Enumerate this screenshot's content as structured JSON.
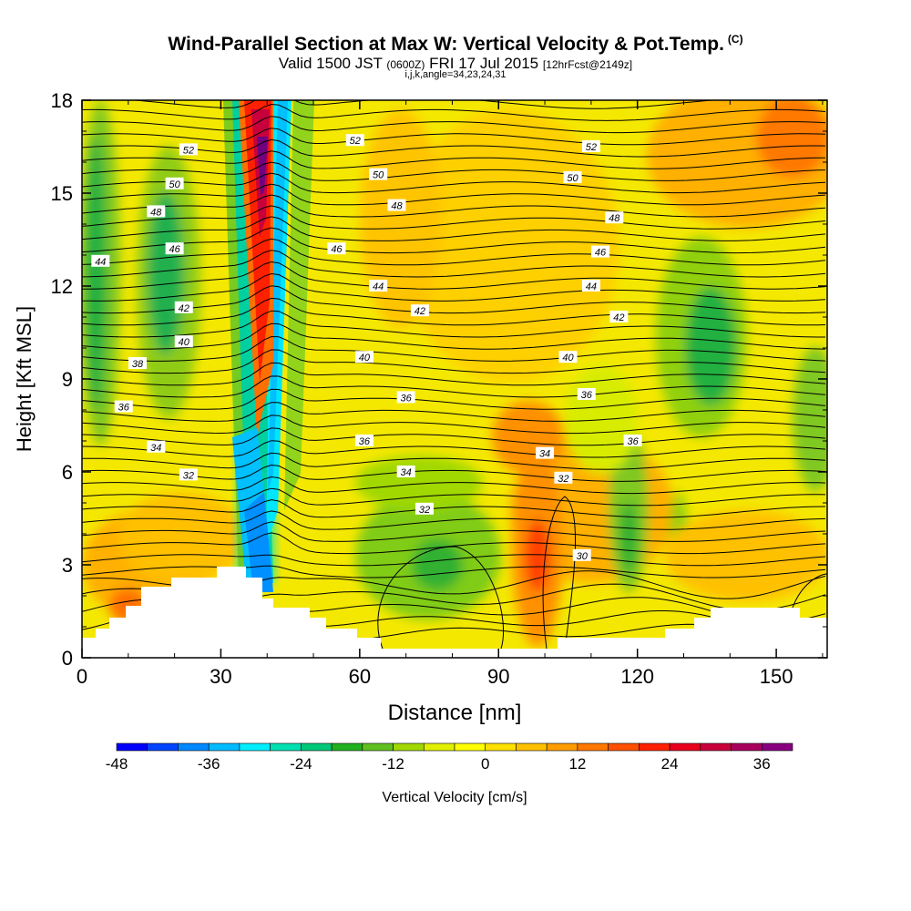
{
  "title": {
    "main": "Wind-Parallel Section at Max W: Vertical Velocity & Pot.Temp.",
    "tag": "(C)"
  },
  "subtitle": {
    "valid": "Valid 1500 JST",
    "z": "(0600Z)",
    "date": "FRI 17 Jul 2015",
    "fcst": "[12hrFcst@2149z]"
  },
  "subline": "i,j,k,angle=34,23,24,31",
  "chart_data": {
    "type": "heatmap",
    "xlabel": "Distance [nm]",
    "ylabel": "Height [Kft MSL]",
    "xlim": [
      0,
      161
    ],
    "ylim": [
      0,
      18
    ],
    "xticks": [
      0,
      30,
      60,
      90,
      120,
      150
    ],
    "yticks": [
      0,
      3,
      6,
      9,
      12,
      15,
      18
    ],
    "colorbar": {
      "label": "Vertical Velocity [cm/s]",
      "min": -48,
      "max": 40,
      "step": 4,
      "tick_values": [
        -48,
        -36,
        -24,
        -12,
        0,
        12,
        24,
        36
      ],
      "colors": [
        "#0000ff",
        "#0044ff",
        "#0088ff",
        "#00bbff",
        "#00eeff",
        "#00e0b0",
        "#00c878",
        "#20b020",
        "#60c020",
        "#a0d800",
        "#e0f000",
        "#ffff00",
        "#ffe000",
        "#ffc000",
        "#ff9c00",
        "#ff7800",
        "#ff5000",
        "#ff2000",
        "#e8001c",
        "#c8003c",
        "#a8005c",
        "#880080"
      ]
    },
    "contours": {
      "variable": "Potential Temperature",
      "labels": [
        {
          "x": 23,
          "y": 16.4,
          "v": "52"
        },
        {
          "x": 59,
          "y": 16.7,
          "v": "52"
        },
        {
          "x": 110,
          "y": 16.5,
          "v": "52"
        },
        {
          "x": 20,
          "y": 15.3,
          "v": "50"
        },
        {
          "x": 64,
          "y": 15.6,
          "v": "50"
        },
        {
          "x": 106,
          "y": 15.5,
          "v": "50"
        },
        {
          "x": 16,
          "y": 14.4,
          "v": "48"
        },
        {
          "x": 68,
          "y": 14.6,
          "v": "48"
        },
        {
          "x": 115,
          "y": 14.2,
          "v": "48"
        },
        {
          "x": 4,
          "y": 12.8,
          "v": "44"
        },
        {
          "x": 20,
          "y": 13.2,
          "v": "46"
        },
        {
          "x": 55,
          "y": 13.2,
          "v": "46"
        },
        {
          "x": 112,
          "y": 13.1,
          "v": "46"
        },
        {
          "x": 64,
          "y": 12.0,
          "v": "44"
        },
        {
          "x": 110,
          "y": 12.0,
          "v": "44"
        },
        {
          "x": 22,
          "y": 11.3,
          "v": "42"
        },
        {
          "x": 73,
          "y": 11.2,
          "v": "42"
        },
        {
          "x": 116,
          "y": 11.0,
          "v": "42"
        },
        {
          "x": 22,
          "y": 10.2,
          "v": "40"
        },
        {
          "x": 61,
          "y": 9.7,
          "v": "40"
        },
        {
          "x": 105,
          "y": 9.7,
          "v": "40"
        },
        {
          "x": 12,
          "y": 9.5,
          "v": "38"
        },
        {
          "x": 9,
          "y": 8.1,
          "v": "36"
        },
        {
          "x": 70,
          "y": 8.4,
          "v": "36"
        },
        {
          "x": 109,
          "y": 8.5,
          "v": "36"
        },
        {
          "x": 61,
          "y": 7.0,
          "v": "36"
        },
        {
          "x": 119,
          "y": 7.0,
          "v": "36"
        },
        {
          "x": 16,
          "y": 6.8,
          "v": "34"
        },
        {
          "x": 100,
          "y": 6.6,
          "v": "34"
        },
        {
          "x": 70,
          "y": 6.0,
          "v": "34"
        },
        {
          "x": 23,
          "y": 5.9,
          "v": "32"
        },
        {
          "x": 104,
          "y": 5.8,
          "v": "32"
        },
        {
          "x": 74,
          "y": 4.8,
          "v": "32"
        },
        {
          "x": 108,
          "y": 3.3,
          "v": "30"
        }
      ]
    }
  }
}
